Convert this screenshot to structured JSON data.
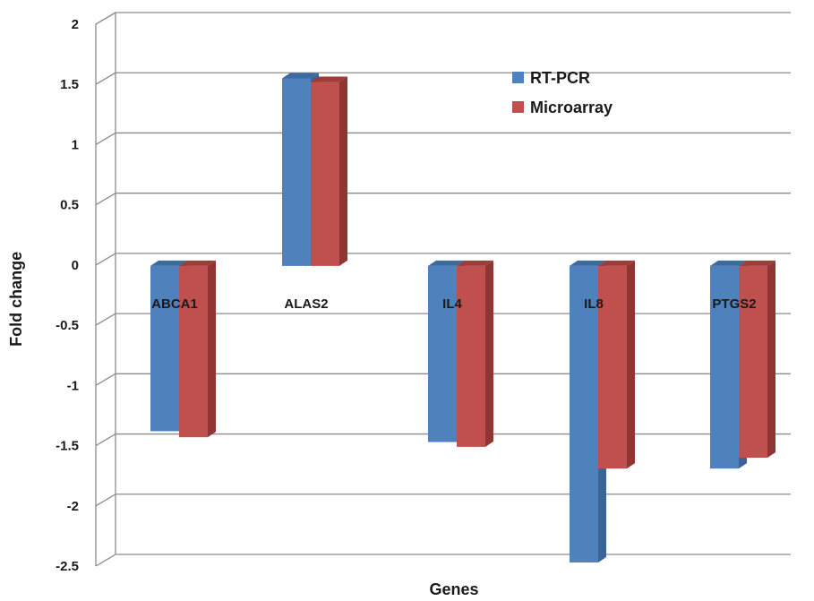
{
  "chart_data": {
    "type": "bar",
    "xlabel": "Genes",
    "ylabel": "Fold change",
    "ylim": [
      -2.5,
      2
    ],
    "yticks": [
      "2",
      "1.5",
      "1",
      "0.5",
      "0",
      "-0.5",
      "-1",
      "-1.5",
      "-2",
      "-2.5"
    ],
    "categories": [
      "ABCA1",
      "ALAS2",
      "IL4",
      "IL8",
      "PTGS2"
    ],
    "series": [
      {
        "name": "RT-PCR",
        "values": [
          -1.38,
          1.55,
          -1.47,
          -2.47,
          -1.69
        ],
        "color": "#4f81bd",
        "side": "#3b6396",
        "top": "#3d6aa3"
      },
      {
        "name": "Microarray",
        "values": [
          -1.43,
          1.52,
          -1.51,
          -1.69,
          -1.6
        ],
        "color": "#c0504d",
        "side": "#8f3533",
        "top": "#9e3c3a"
      }
    ],
    "grid": true,
    "legend_position": "top-right",
    "chart_style": "3d-clustered-column"
  }
}
